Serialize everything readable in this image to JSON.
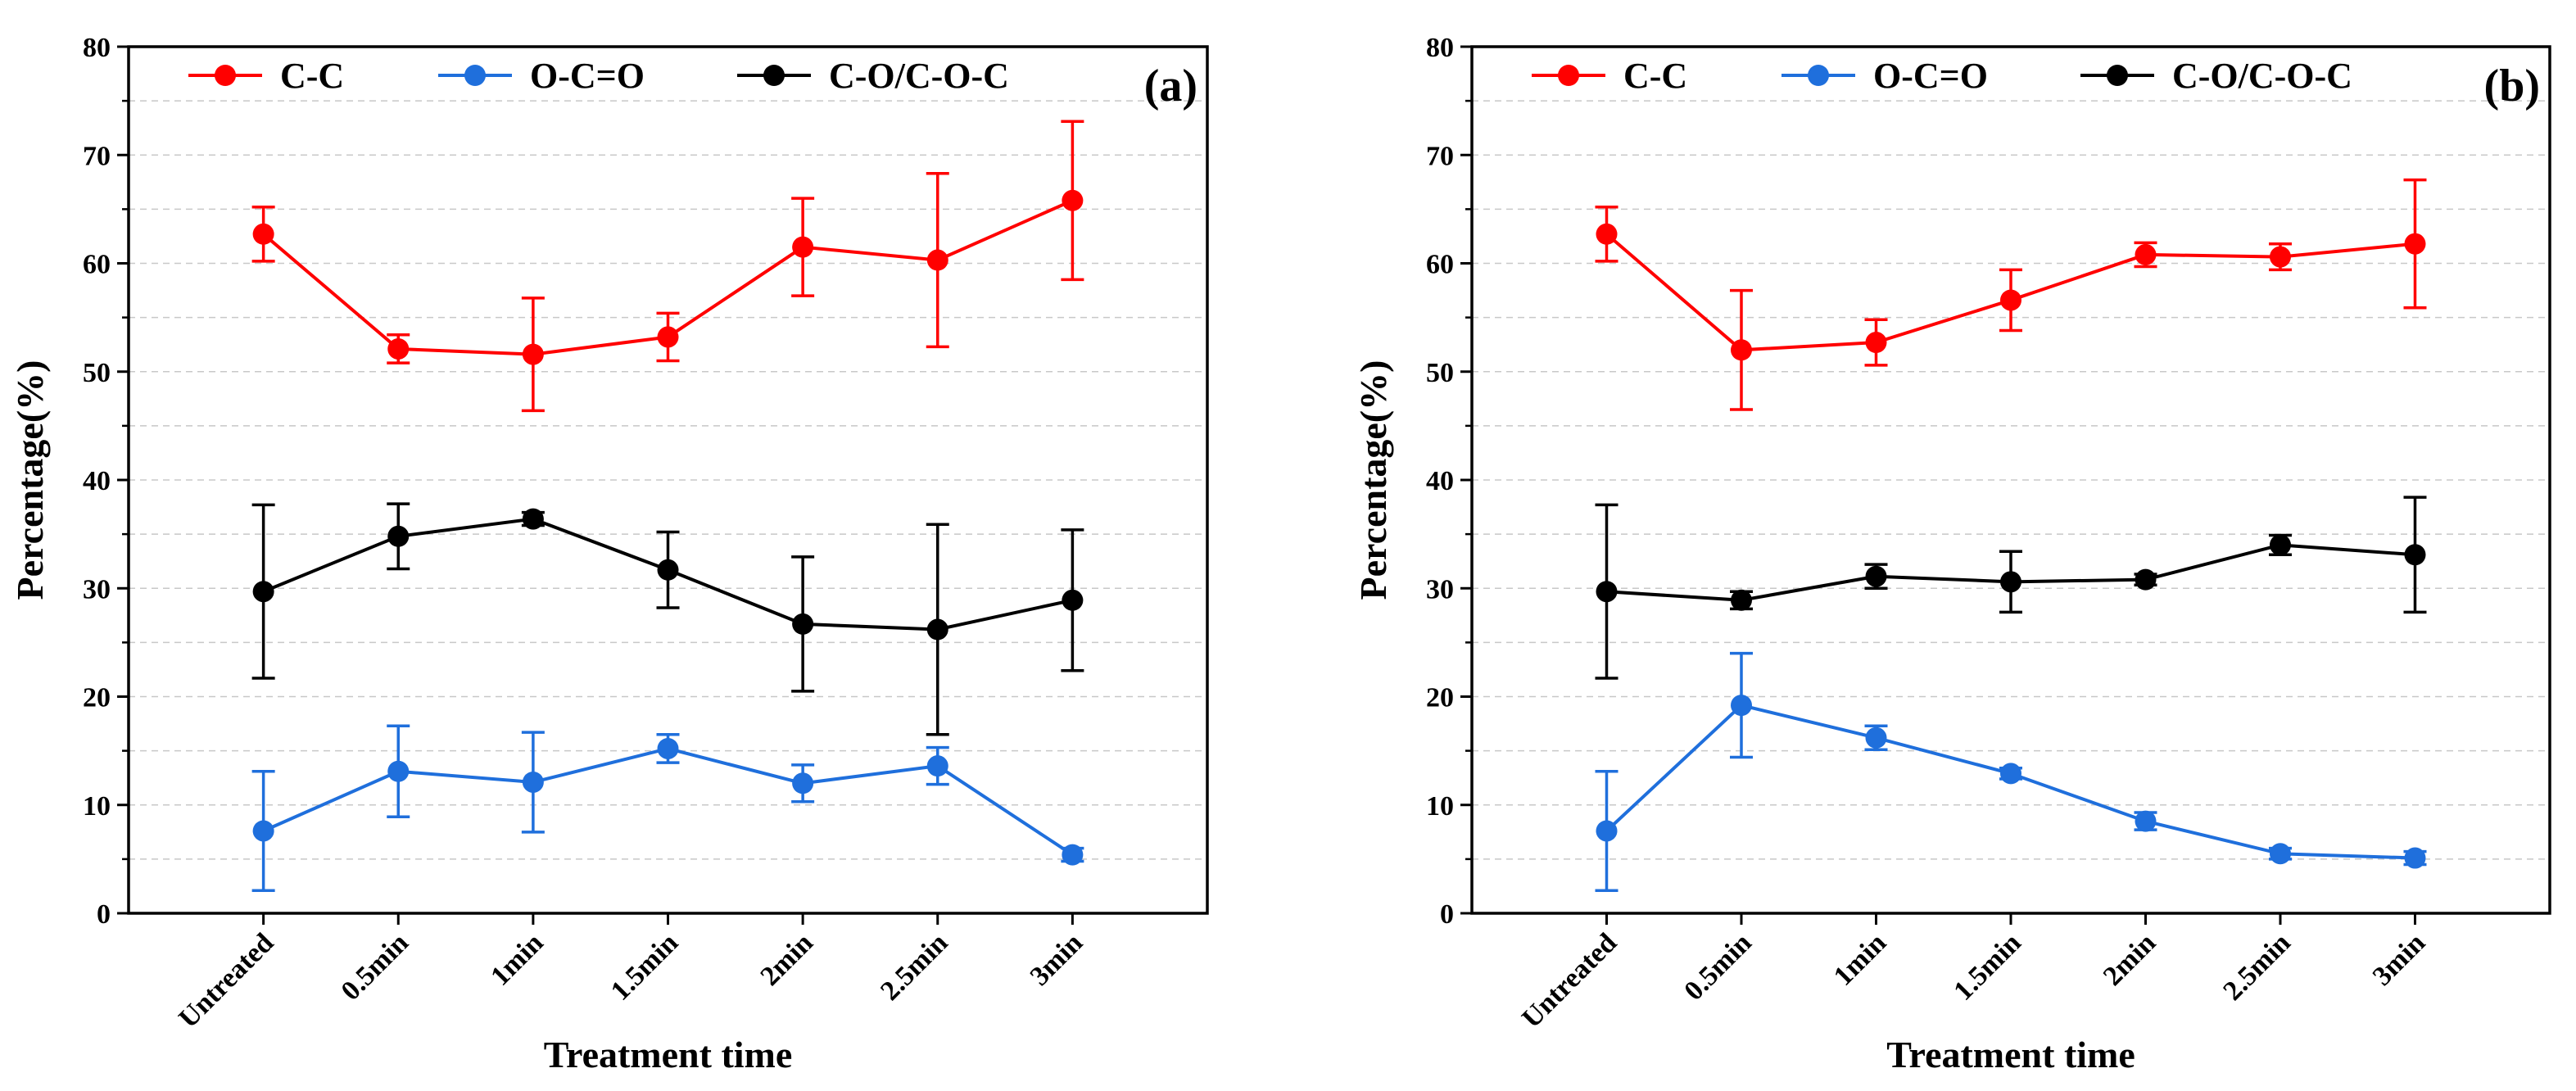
{
  "chart_data": [
    {
      "type": "line",
      "panel_label": "(a)",
      "xlabel": "Treatment time",
      "ylabel": "Percentage(%)",
      "categories": [
        "Untreated",
        "0.5min",
        "1min",
        "1.5min",
        "2min",
        "2.5min",
        "3min"
      ],
      "ylim": [
        0,
        80
      ],
      "yticks": [
        0,
        10,
        20,
        30,
        40,
        50,
        60,
        70,
        80
      ],
      "grid": true,
      "legend_position": "top",
      "series": [
        {
          "name": "C-C",
          "color": "#ff0000",
          "values": [
            62.7,
            52.1,
            51.6,
            53.2,
            61.5,
            60.3,
            65.8
          ],
          "errors": [
            2.5,
            1.3,
            5.2,
            2.2,
            4.5,
            8.0,
            7.3
          ]
        },
        {
          "name": "O-C=O",
          "color": "#1f6fdc",
          "values": [
            7.6,
            13.1,
            12.1,
            15.2,
            12.0,
            13.6,
            5.4
          ],
          "errors": [
            5.5,
            4.2,
            4.6,
            1.3,
            1.7,
            1.7,
            0.6
          ]
        },
        {
          "name": "C-O/C-O-C",
          "color": "#000000",
          "values": [
            29.7,
            34.8,
            36.4,
            31.7,
            26.7,
            26.2,
            28.9
          ],
          "errors": [
            8.0,
            3.0,
            0.6,
            3.5,
            6.2,
            9.7,
            6.5
          ]
        }
      ]
    },
    {
      "type": "line",
      "panel_label": "(b)",
      "xlabel": "Treatment time",
      "ylabel": "Percentage(%)",
      "categories": [
        "Untreated",
        "0.5min",
        "1min",
        "1.5min",
        "2min",
        "2.5min",
        "3min"
      ],
      "ylim": [
        0,
        80
      ],
      "yticks": [
        0,
        10,
        20,
        30,
        40,
        50,
        60,
        70,
        80
      ],
      "grid": true,
      "legend_position": "top",
      "series": [
        {
          "name": "C-C",
          "color": "#ff0000",
          "values": [
            62.7,
            52.0,
            52.7,
            56.6,
            60.8,
            60.6,
            61.8
          ],
          "errors": [
            2.5,
            5.5,
            2.1,
            2.8,
            1.1,
            1.2,
            5.9
          ]
        },
        {
          "name": "O-C=O",
          "color": "#1f6fdc",
          "values": [
            7.6,
            19.2,
            16.2,
            12.9,
            8.5,
            5.5,
            5.1
          ],
          "errors": [
            5.5,
            4.8,
            1.1,
            0.5,
            0.8,
            0.5,
            0.6
          ]
        },
        {
          "name": "C-O/C-O-C",
          "color": "#000000",
          "values": [
            29.7,
            28.9,
            31.1,
            30.6,
            30.8,
            34.0,
            33.1
          ],
          "errors": [
            8.0,
            0.8,
            1.1,
            2.8,
            0.5,
            0.9,
            5.3
          ]
        }
      ]
    }
  ]
}
